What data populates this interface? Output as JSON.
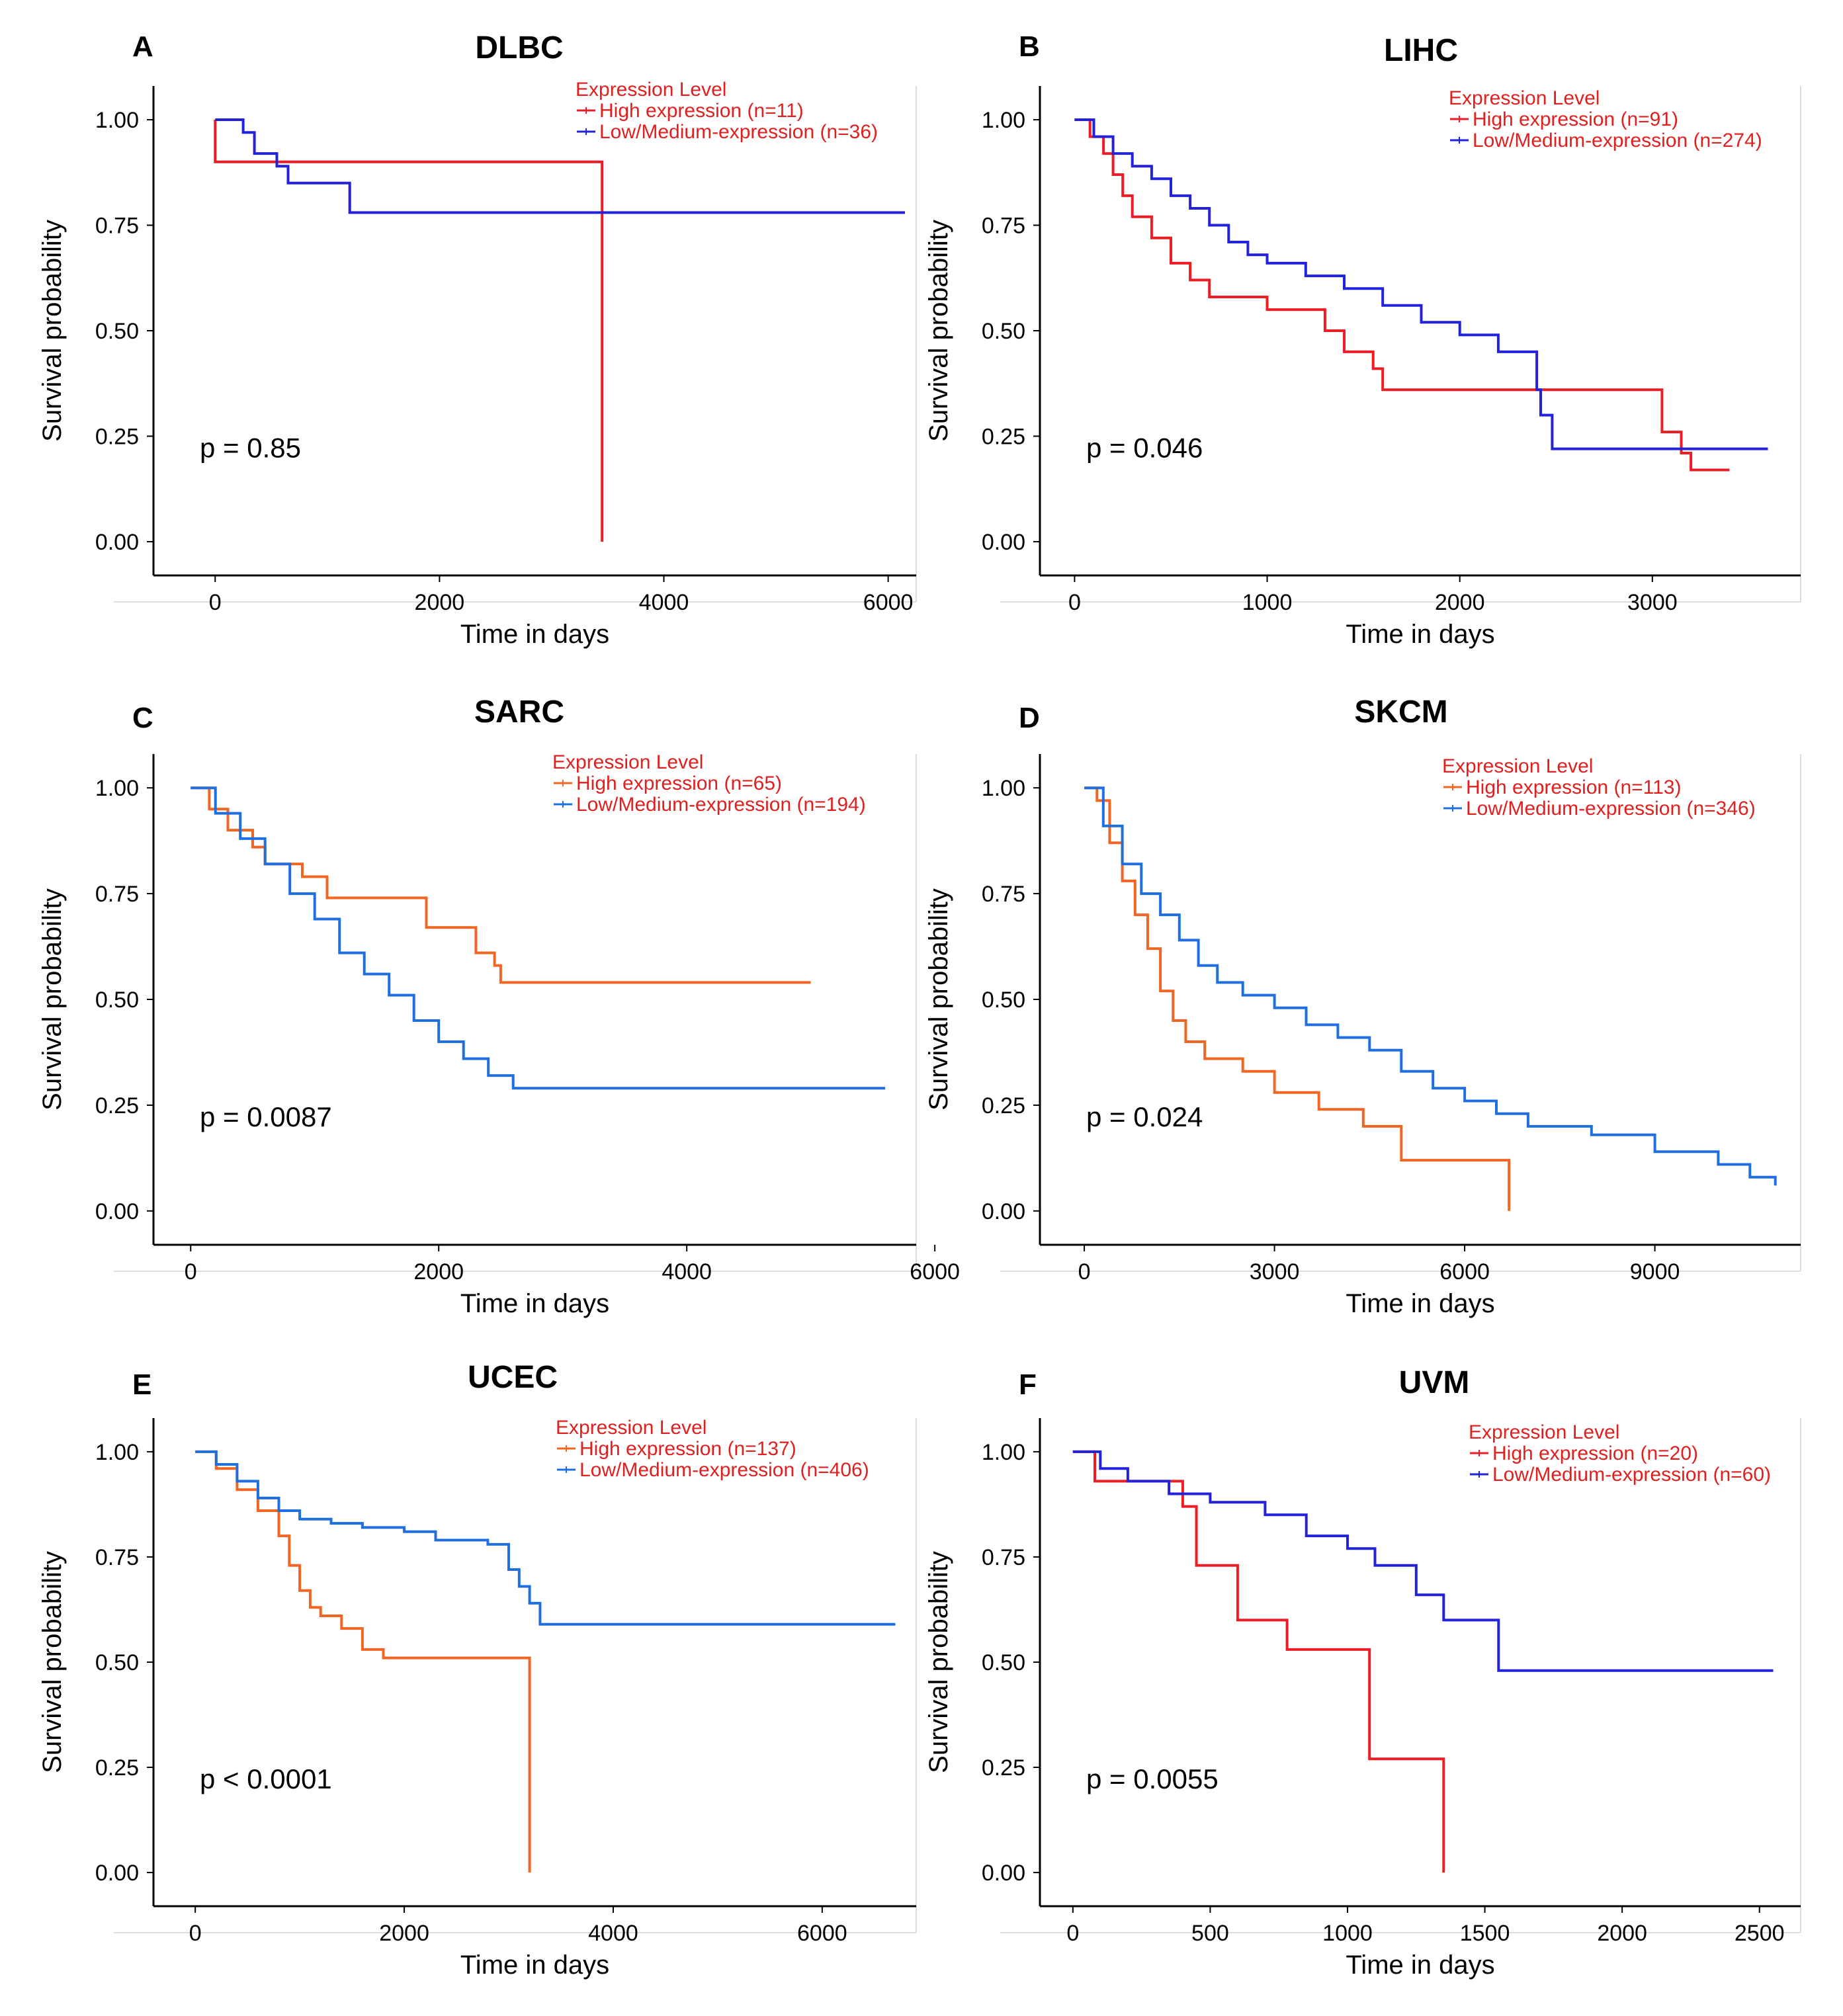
{
  "figure": {
    "background": "#ffffff"
  },
  "chart_data": [
    {
      "panel": "A",
      "title": "DLBC",
      "type": "line",
      "step": true,
      "xlabel": "Time in days",
      "ylabel": "Survival probability",
      "xlim": [
        -550,
        6250
      ],
      "ylim": [
        -0.08,
        1.08
      ],
      "xticks": [
        0,
        2000,
        4000,
        6000
      ],
      "yticks": [
        0.0,
        0.25,
        0.5,
        0.75,
        1.0
      ],
      "ytick_labels": [
        "0.00",
        "0.25",
        "0.50",
        "0.75",
        "1.00"
      ],
      "legend_title": "Expression Level",
      "legend_title_color": "#e0201f",
      "legend_text_color": "#e0201f",
      "pvalue": "p = 0.85",
      "series": [
        {
          "name": "High expression (n=11)",
          "color": "#ee1c25",
          "x": [
            0,
            0,
            3450,
            3450
          ],
          "y": [
            1.0,
            0.9,
            0.9,
            0.0
          ]
        },
        {
          "name": "Low/Medium-expression (n=36)",
          "color": "#2222dd",
          "x": [
            0,
            200,
            250,
            350,
            550,
            650,
            1150,
            1200,
            6150
          ],
          "y": [
            1.0,
            1.0,
            0.97,
            0.92,
            0.89,
            0.85,
            0.85,
            0.78,
            0.78
          ]
        }
      ]
    },
    {
      "panel": "B",
      "title": "LIHC",
      "type": "line",
      "step": true,
      "xlabel": "Time in days",
      "ylabel": "Survival probability",
      "xlim": [
        -180,
        3770
      ],
      "ylim": [
        -0.08,
        1.08
      ],
      "xticks": [
        0,
        1000,
        2000,
        3000
      ],
      "yticks": [
        0.0,
        0.25,
        0.5,
        0.75,
        1.0
      ],
      "ytick_labels": [
        "0.00",
        "0.25",
        "0.50",
        "0.75",
        "1.00"
      ],
      "legend_title": "Expression Level",
      "legend_title_color": "#e0201f",
      "legend_text_color": "#e0201f",
      "pvalue": "p = 0.046",
      "series": [
        {
          "name": "High expression (n=91)",
          "color": "#ee1c25",
          "x": [
            0,
            80,
            150,
            200,
            250,
            300,
            400,
            500,
            600,
            700,
            1000,
            1300,
            1400,
            1550,
            1600,
            3050,
            3150,
            3200,
            3400
          ],
          "y": [
            1.0,
            0.96,
            0.92,
            0.87,
            0.82,
            0.77,
            0.72,
            0.66,
            0.62,
            0.58,
            0.55,
            0.5,
            0.45,
            0.41,
            0.36,
            0.26,
            0.21,
            0.17,
            0.17
          ]
        },
        {
          "name": "Low/Medium-expression (n=274)",
          "color": "#2222dd",
          "x": [
            0,
            100,
            200,
            300,
            400,
            500,
            600,
            700,
            800,
            900,
            1000,
            1200,
            1400,
            1600,
            1800,
            2000,
            2200,
            2400,
            2420,
            2480,
            3600
          ],
          "y": [
            1.0,
            0.96,
            0.92,
            0.89,
            0.86,
            0.82,
            0.79,
            0.75,
            0.71,
            0.68,
            0.66,
            0.63,
            0.6,
            0.56,
            0.52,
            0.49,
            0.45,
            0.36,
            0.3,
            0.22,
            0.22
          ]
        }
      ]
    },
    {
      "panel": "C",
      "title": "SARC",
      "type": "line",
      "step": true,
      "xlabel": "Time in days",
      "ylabel": "Survival probability",
      "xlim": [
        -300,
        5850
      ],
      "ylim": [
        -0.08,
        1.08
      ],
      "xticks": [
        0,
        2000,
        4000,
        6000
      ],
      "yticks": [
        0.0,
        0.25,
        0.5,
        0.75,
        1.0
      ],
      "ytick_labels": [
        "0.00",
        "0.25",
        "0.50",
        "0.75",
        "1.00"
      ],
      "legend_title": "Expression Level",
      "legend_title_color": "#e0201f",
      "legend_text_color": "#e0201f",
      "pvalue": "p = 0.0087",
      "series": [
        {
          "name": "High expression (n=65)",
          "color": "#f26522",
          "x": [
            0,
            150,
            300,
            500,
            600,
            900,
            1100,
            1900,
            2300,
            2450,
            2500,
            5000
          ],
          "y": [
            1.0,
            0.95,
            0.9,
            0.86,
            0.82,
            0.79,
            0.74,
            0.67,
            0.61,
            0.58,
            0.54,
            0.54
          ]
        },
        {
          "name": "Low/Medium-expression (n=194)",
          "color": "#1f6fe0",
          "x": [
            0,
            200,
            400,
            600,
            800,
            1000,
            1200,
            1400,
            1600,
            1800,
            2000,
            2200,
            2400,
            2600,
            5600
          ],
          "y": [
            1.0,
            0.94,
            0.88,
            0.82,
            0.75,
            0.69,
            0.61,
            0.56,
            0.51,
            0.45,
            0.4,
            0.36,
            0.32,
            0.29,
            0.29
          ]
        }
      ]
    },
    {
      "panel": "D",
      "title": "SKCM",
      "type": "line",
      "step": true,
      "xlabel": "Time in days",
      "ylabel": "Survival probability",
      "xlim": [
        -700,
        11300
      ],
      "ylim": [
        -0.08,
        1.08
      ],
      "xticks": [
        0,
        3000,
        6000,
        9000
      ],
      "yticks": [
        0.0,
        0.25,
        0.5,
        0.75,
        1.0
      ],
      "ytick_labels": [
        "0.00",
        "0.25",
        "0.50",
        "0.75",
        "1.00"
      ],
      "legend_title": "Expression Level",
      "legend_title_color": "#e0201f",
      "legend_text_color": "#e0201f",
      "pvalue": "p = 0.024",
      "series": [
        {
          "name": "High expression (n=113)",
          "color": "#f26522",
          "x": [
            0,
            200,
            400,
            600,
            800,
            1000,
            1200,
            1400,
            1600,
            1900,
            2500,
            3000,
            3700,
            4400,
            5000,
            6600,
            6700
          ],
          "y": [
            1.0,
            0.97,
            0.87,
            0.78,
            0.7,
            0.62,
            0.52,
            0.45,
            0.4,
            0.36,
            0.33,
            0.28,
            0.24,
            0.2,
            0.12,
            0.12,
            0.0
          ]
        },
        {
          "name": "Low/Medium-expression (n=346)",
          "color": "#1f6fe0",
          "x": [
            0,
            300,
            600,
            900,
            1200,
            1500,
            1800,
            2100,
            2500,
            3000,
            3500,
            4000,
            4500,
            5000,
            5500,
            6000,
            6500,
            7000,
            8000,
            9000,
            10000,
            10500,
            10900
          ],
          "y": [
            1.0,
            0.91,
            0.82,
            0.75,
            0.7,
            0.64,
            0.58,
            0.54,
            0.51,
            0.48,
            0.44,
            0.41,
            0.38,
            0.33,
            0.29,
            0.26,
            0.23,
            0.2,
            0.18,
            0.14,
            0.11,
            0.08,
            0.06
          ]
        }
      ]
    },
    {
      "panel": "E",
      "title": "UCEC",
      "type": "line",
      "step": true,
      "xlabel": "Time in days",
      "ylabel": "Survival probability",
      "xlim": [
        -400,
        6900
      ],
      "ylim": [
        -0.08,
        1.08
      ],
      "xticks": [
        0,
        2000,
        4000,
        6000
      ],
      "yticks": [
        0.0,
        0.25,
        0.5,
        0.75,
        1.0
      ],
      "ytick_labels": [
        "0.00",
        "0.25",
        "0.50",
        "0.75",
        "1.00"
      ],
      "legend_title": "Expression Level",
      "legend_title_color": "#e0201f",
      "legend_text_color": "#e0201f",
      "pvalue": "p < 0.0001",
      "series": [
        {
          "name": "High expression (n=137)",
          "color": "#f26522",
          "x": [
            0,
            200,
            400,
            600,
            800,
            900,
            1000,
            1100,
            1200,
            1400,
            1600,
            1800,
            3200,
            3200
          ],
          "y": [
            1.0,
            0.96,
            0.91,
            0.86,
            0.8,
            0.73,
            0.67,
            0.63,
            0.61,
            0.58,
            0.53,
            0.51,
            0.51,
            0.0
          ]
        },
        {
          "name": "Low/Medium-expression (n=406)",
          "color": "#1f6fe0",
          "x": [
            0,
            200,
            400,
            600,
            800,
            1000,
            1300,
            1600,
            2000,
            2300,
            2800,
            3000,
            3100,
            3200,
            3300,
            6700
          ],
          "y": [
            1.0,
            0.97,
            0.93,
            0.89,
            0.86,
            0.84,
            0.83,
            0.82,
            0.81,
            0.79,
            0.78,
            0.72,
            0.68,
            0.64,
            0.59,
            0.59
          ]
        }
      ]
    },
    {
      "panel": "F",
      "title": "UVM",
      "type": "line",
      "step": true,
      "xlabel": "Time in days",
      "ylabel": "Survival probability",
      "xlim": [
        -120,
        2650
      ],
      "ylim": [
        -0.08,
        1.08
      ],
      "xticks": [
        0,
        500,
        1000,
        1500,
        2000,
        2500
      ],
      "yticks": [
        0.0,
        0.25,
        0.5,
        0.75,
        1.0
      ],
      "ytick_labels": [
        "0.00",
        "0.25",
        "0.50",
        "0.75",
        "1.00"
      ],
      "legend_title": "Expression Level",
      "legend_title_color": "#e0201f",
      "legend_text_color": "#e0201f",
      "pvalue": "p = 0.0055",
      "series": [
        {
          "name": "High expression (n=20)",
          "color": "#ee1c25",
          "x": [
            0,
            80,
            400,
            450,
            600,
            780,
            1080,
            1350,
            1350
          ],
          "y": [
            1.0,
            0.93,
            0.87,
            0.73,
            0.6,
            0.53,
            0.27,
            0.27,
            0.0
          ]
        },
        {
          "name": "Low/Medium-expression (n=60)",
          "color": "#2222dd",
          "x": [
            0,
            100,
            200,
            350,
            500,
            700,
            850,
            1000,
            1100,
            1250,
            1350,
            1550,
            2550
          ],
          "y": [
            1.0,
            0.96,
            0.93,
            0.9,
            0.88,
            0.85,
            0.8,
            0.77,
            0.73,
            0.66,
            0.6,
            0.48,
            0.48
          ]
        }
      ]
    }
  ]
}
